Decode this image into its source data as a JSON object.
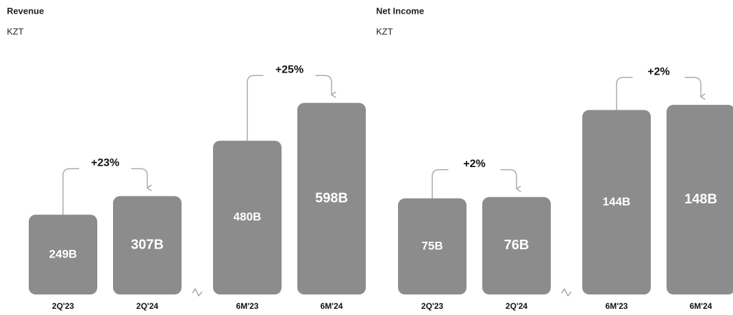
{
  "chart_data": [
    {
      "type": "bar",
      "title": "Revenue",
      "subtitle": "KZT",
      "categories": [
        "2Q'23",
        "2Q'24",
        "6M'23",
        "6M'24"
      ],
      "values": [
        249,
        307,
        480,
        598
      ],
      "value_labels": [
        "249B",
        "307B",
        "480B",
        "598B"
      ],
      "annotations": [
        "+23%",
        "+25%"
      ],
      "color": "#8c8c8c",
      "ylim": [
        0,
        620
      ]
    },
    {
      "type": "bar",
      "title": "Net Income",
      "subtitle": "KZT",
      "categories": [
        "2Q'23",
        "2Q'24",
        "6M'23",
        "6M'24"
      ],
      "values": [
        75,
        76,
        144,
        148
      ],
      "value_labels": [
        "75B",
        "76B",
        "144B",
        "148B"
      ],
      "annotations": [
        "+2%",
        "+2%"
      ],
      "color": "#8c8c8c",
      "ylim": [
        0,
        155
      ]
    }
  ]
}
